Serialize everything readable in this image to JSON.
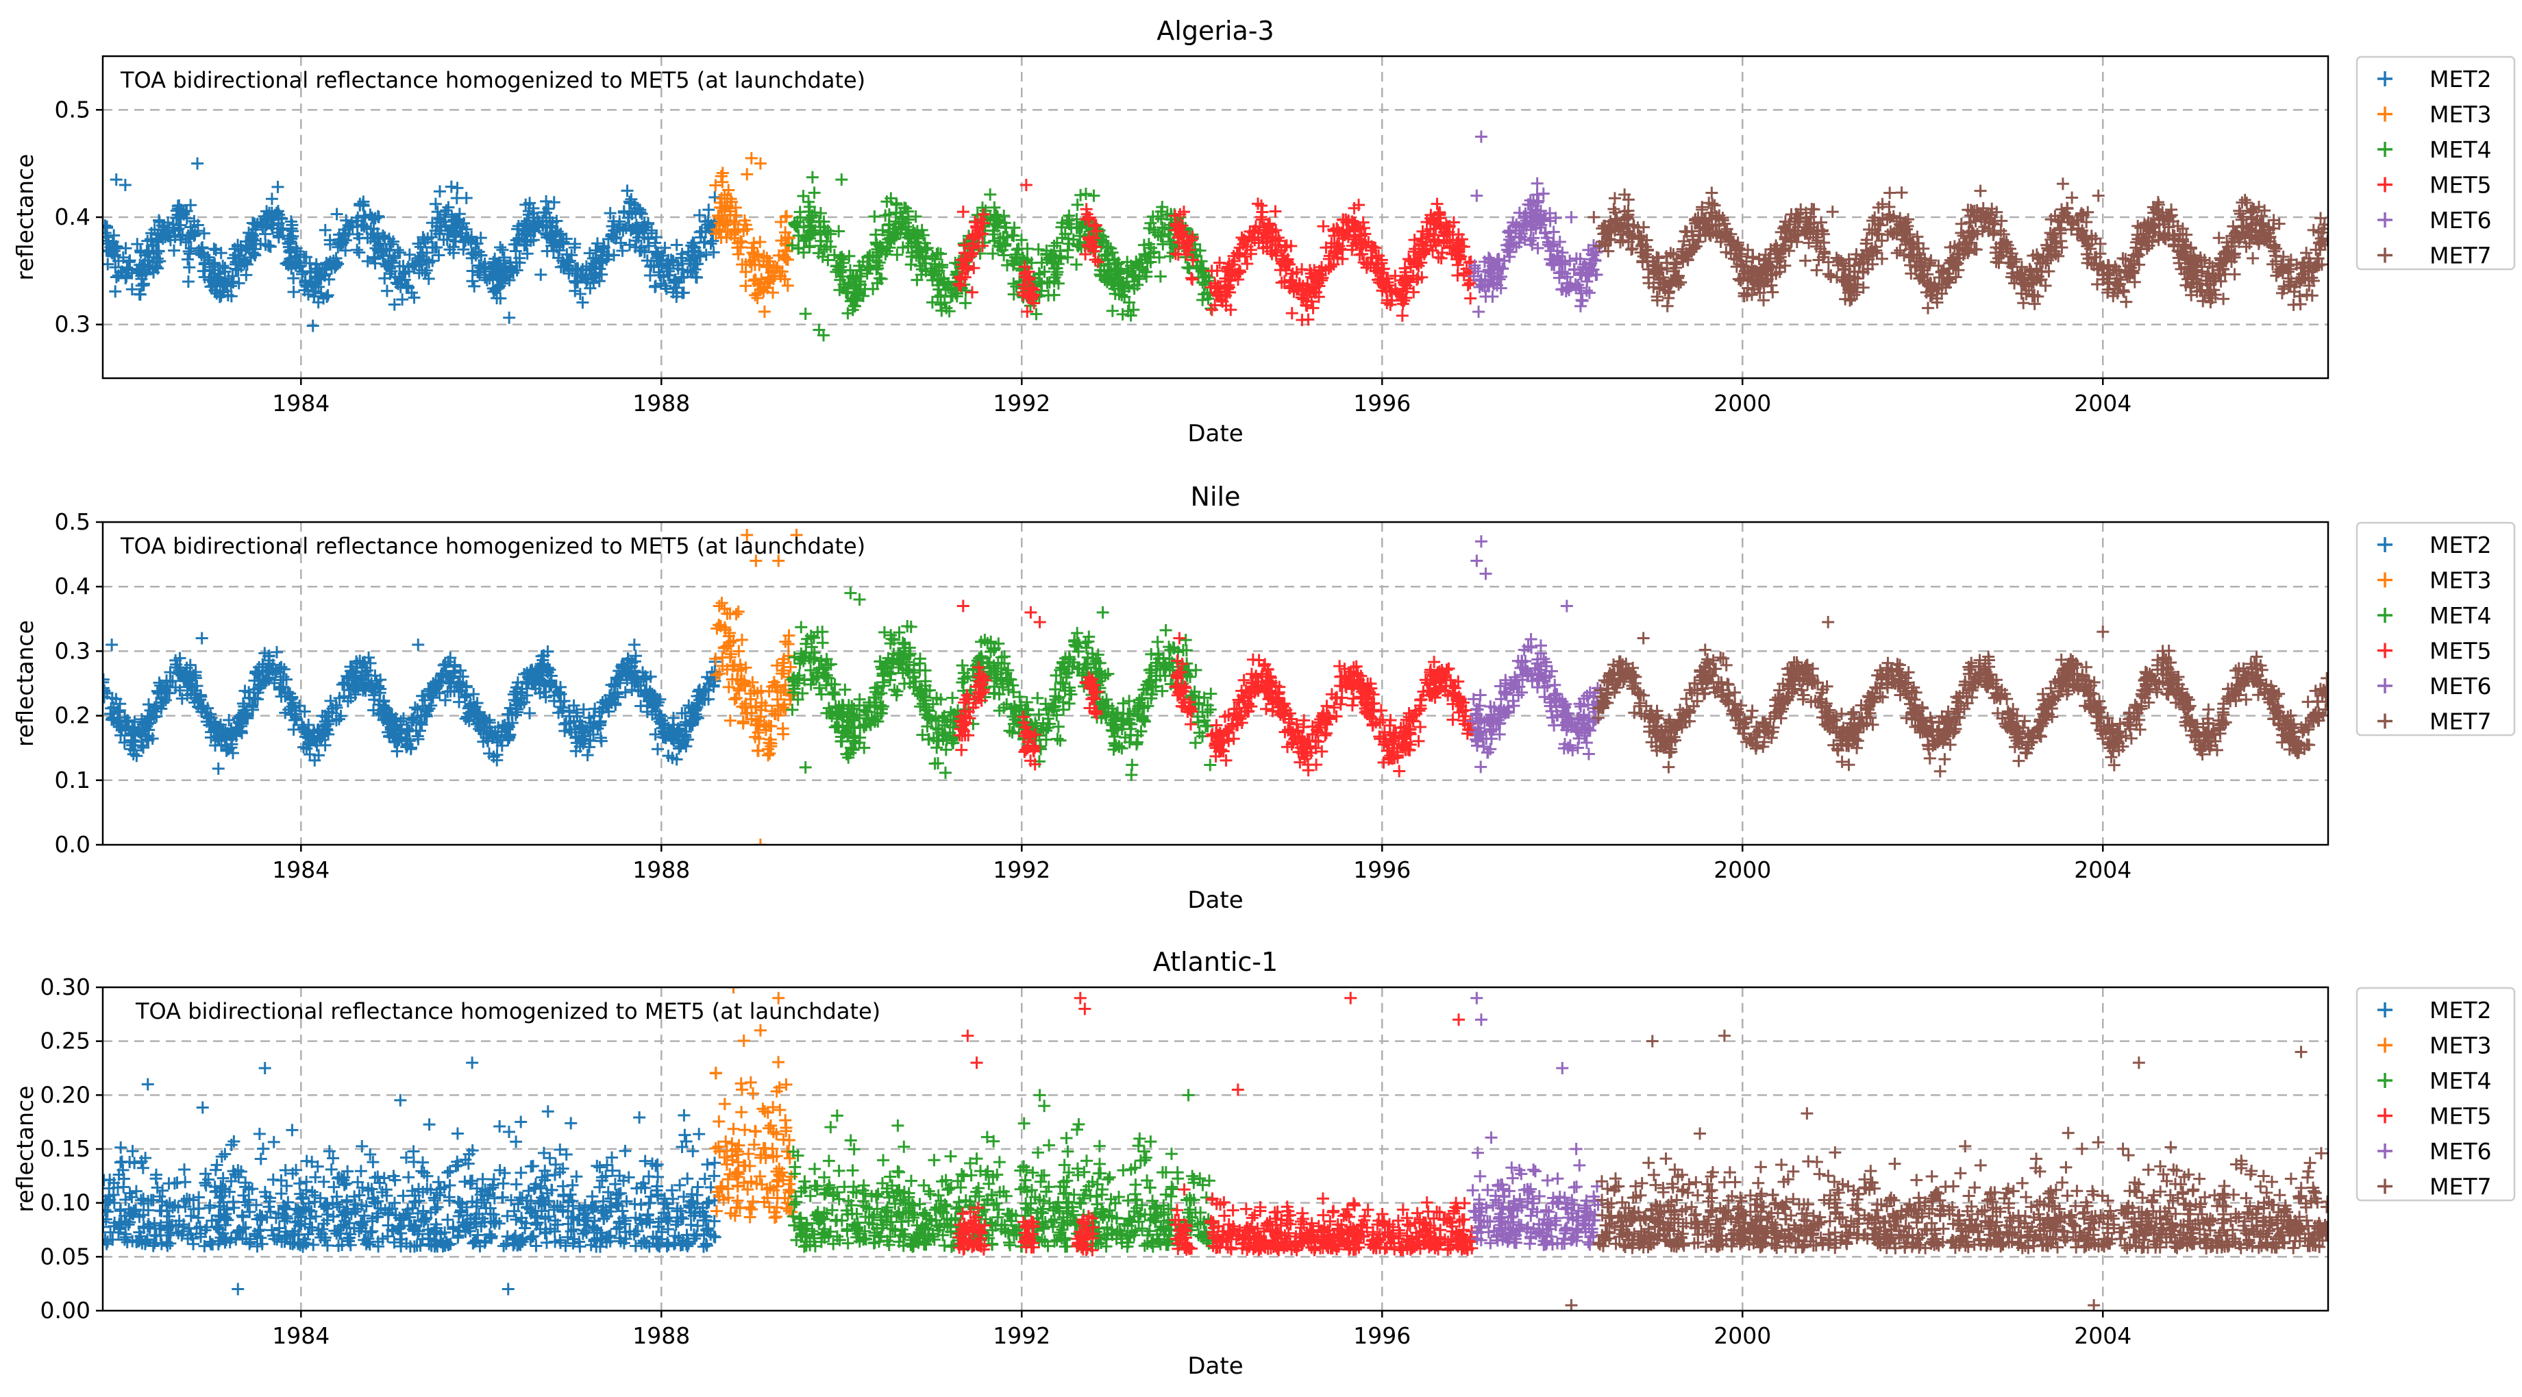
{
  "chart_data": [
    {
      "type": "scatter",
      "title": "Algeria-3",
      "annotation": "TOA bidirectional reflectance homogenized to MET5 (at launchdate)",
      "xlabel": "Date",
      "ylabel": "reflectance",
      "xlim": [
        1981.8,
        2006.5
      ],
      "ylim": [
        0.25,
        0.55
      ],
      "xticks": [
        1984,
        1988,
        1992,
        1996,
        2000,
        2004
      ],
      "xtick_labels": [
        "1984",
        "1988",
        "1992",
        "1996",
        "2000",
        "2004"
      ],
      "yticks": [
        0.3,
        0.4,
        0.5
      ],
      "ytick_labels": [
        "0.3",
        "0.4",
        "0.5"
      ],
      "grid": true,
      "legend_position": "outside-right",
      "marker": "+",
      "series": [
        {
          "name": "MET2",
          "color": "#1f77b4",
          "start": 1981.8,
          "end": 1988.6,
          "base": 0.37,
          "amp": 0.025,
          "noise": 0.012,
          "outliers": [
            [
              1981.95,
              0.435
            ],
            [
              1982.05,
              0.43
            ],
            [
              1982.85,
              0.45
            ],
            [
              1982.75,
              0.34
            ]
          ]
        },
        {
          "name": "MET3",
          "color": "#ff7f0e",
          "start": 1988.6,
          "end": 1989.45,
          "base": 0.375,
          "amp": 0.03,
          "noise": 0.015,
          "outliers": [
            [
              1989.0,
              0.455
            ],
            [
              1989.1,
              0.45
            ],
            [
              1988.95,
              0.44
            ]
          ]
        },
        {
          "name": "MET4",
          "color": "#2ca02c",
          "start": 1989.45,
          "end": 1994.1,
          "base": 0.365,
          "amp": 0.028,
          "noise": 0.013,
          "outliers": [
            [
              1989.75,
              0.295
            ],
            [
              1989.8,
              0.29
            ],
            [
              1989.6,
              0.31
            ],
            [
              1990.0,
              0.435
            ],
            [
              1992.8,
              0.42
            ]
          ]
        },
        {
          "name": "MET5",
          "color": "#ff2a2a",
          "start": 1994.1,
          "end": 1997.0,
          "base": 0.36,
          "amp": 0.03,
          "noise": 0.011,
          "outliers": [
            [
              1991.35,
              0.405
            ],
            [
              1991.45,
              0.33
            ],
            [
              1992.05,
              0.43
            ],
            [
              1993.8,
              0.405
            ]
          ],
          "extra_segments": [
            [
              1991.3,
              1991.6
            ],
            [
              1992.0,
              1992.15
            ],
            [
              1992.7,
              1992.85
            ],
            [
              1993.7,
              1993.9
            ]
          ]
        },
        {
          "name": "MET6",
          "color": "#9467bd",
          "start": 1997.0,
          "end": 1998.4,
          "base": 0.37,
          "amp": 0.03,
          "noise": 0.012,
          "outliers": [
            [
              1997.1,
              0.475
            ],
            [
              1997.05,
              0.42
            ],
            [
              1998.1,
              0.4
            ]
          ]
        },
        {
          "name": "MET7",
          "color": "#8c564b",
          "start": 1998.4,
          "end": 2006.5,
          "base": 0.368,
          "amp": 0.028,
          "noise": 0.011,
          "outliers": [
            [
              1998.35,
              0.4
            ],
            [
              2003.95,
              0.42
            ],
            [
              2001.0,
              0.405
            ]
          ]
        }
      ]
    },
    {
      "type": "scatter",
      "title": "Nile",
      "annotation": "TOA bidirectional reflectance homogenized to MET5 (at launchdate)",
      "xlabel": "Date",
      "ylabel": "reflectance",
      "xlim": [
        1981.8,
        2006.5
      ],
      "ylim": [
        0.0,
        0.5
      ],
      "xticks": [
        1984,
        1988,
        1992,
        1996,
        2000,
        2004
      ],
      "xtick_labels": [
        "1984",
        "1988",
        "1992",
        "1996",
        "2000",
        "2004"
      ],
      "yticks": [
        0.0,
        0.1,
        0.2,
        0.3,
        0.4,
        0.5
      ],
      "ytick_labels": [
        "0.0",
        "0.1",
        "0.2",
        "0.3",
        "0.4",
        "0.5"
      ],
      "grid": true,
      "legend_position": "outside-right",
      "marker": "+",
      "series": [
        {
          "name": "MET2",
          "color": "#1f77b4",
          "start": 1981.8,
          "end": 1988.6,
          "base": 0.215,
          "amp": 0.05,
          "noise": 0.015,
          "outliers": [
            [
              1981.9,
              0.31
            ],
            [
              1982.9,
              0.32
            ],
            [
              1985.3,
              0.31
            ],
            [
              1987.7,
              0.31
            ]
          ]
        },
        {
          "name": "MET3",
          "color": "#ff7f0e",
          "start": 1988.6,
          "end": 1989.45,
          "base": 0.25,
          "amp": 0.06,
          "noise": 0.035,
          "outliers": [
            [
              1988.95,
              0.48
            ],
            [
              1989.5,
              0.48
            ],
            [
              1989.05,
              0.44
            ],
            [
              1989.3,
              0.44
            ],
            [
              1989.1,
              0.0
            ]
          ]
        },
        {
          "name": "MET4",
          "color": "#2ca02c",
          "start": 1989.45,
          "end": 1994.1,
          "base": 0.23,
          "amp": 0.055,
          "noise": 0.025,
          "outliers": [
            [
              1990.1,
              0.39
            ],
            [
              1990.2,
              0.38
            ],
            [
              1989.6,
              0.12
            ],
            [
              1992.9,
              0.36
            ]
          ]
        },
        {
          "name": "MET5",
          "color": "#ff2a2a",
          "start": 1994.1,
          "end": 1997.0,
          "base": 0.205,
          "amp": 0.05,
          "noise": 0.015,
          "outliers": [
            [
              1991.35,
              0.37
            ],
            [
              1992.1,
              0.36
            ],
            [
              1992.2,
              0.345
            ],
            [
              1993.75,
              0.32
            ]
          ],
          "extra_segments": [
            [
              1991.3,
              1991.6
            ],
            [
              1992.0,
              1992.15
            ],
            [
              1992.7,
              1992.85
            ],
            [
              1993.7,
              1993.9
            ]
          ]
        },
        {
          "name": "MET6",
          "color": "#9467bd",
          "start": 1997.0,
          "end": 1998.4,
          "base": 0.23,
          "amp": 0.05,
          "noise": 0.02,
          "outliers": [
            [
              1997.1,
              0.47
            ],
            [
              1997.05,
              0.44
            ],
            [
              1997.15,
              0.42
            ],
            [
              1998.05,
              0.37
            ]
          ]
        },
        {
          "name": "MET7",
          "color": "#8c564b",
          "start": 1998.4,
          "end": 2006.5,
          "base": 0.215,
          "amp": 0.05,
          "noise": 0.015,
          "outliers": [
            [
              2000.95,
              0.345
            ],
            [
              2004.0,
              0.33
            ],
            [
              1998.9,
              0.32
            ]
          ]
        }
      ]
    },
    {
      "type": "scatter",
      "title": "Atlantic-1",
      "annotation": "TOA bidirectional reflectance homogenized to MET5 (at launchdate)",
      "xlabel": "Date",
      "ylabel": "reflectance",
      "xlim": [
        1981.8,
        2006.5
      ],
      "ylim": [
        0.0,
        0.3
      ],
      "xticks": [
        1984,
        1988,
        1992,
        1996,
        2000,
        2004
      ],
      "xtick_labels": [
        "1984",
        "1988",
        "1992",
        "1996",
        "2000",
        "2004"
      ],
      "yticks": [
        0.0,
        0.05,
        0.1,
        0.15,
        0.2,
        0.25,
        0.3
      ],
      "ytick_labels": [
        "0.00",
        "0.05",
        "0.10",
        "0.15",
        "0.20",
        "0.25",
        "0.30"
      ],
      "grid": true,
      "legend_position": "outside-right",
      "marker": "+",
      "series": [
        {
          "name": "MET2",
          "color": "#1f77b4",
          "start": 1981.8,
          "end": 1988.6,
          "base": 0.075,
          "amp": 0.0,
          "noise": 0.045,
          "outliers": [
            [
              1983.6,
              0.225
            ],
            [
              1985.9,
              0.23
            ],
            [
              1983.3,
              0.02
            ],
            [
              1986.3,
              0.02
            ],
            [
              1982.3,
              0.21
            ]
          ]
        },
        {
          "name": "MET3",
          "color": "#ff7f0e",
          "start": 1988.6,
          "end": 1989.45,
          "base": 0.11,
          "amp": 0.0,
          "noise": 0.07,
          "outliers": [
            [
              1988.8,
              0.3
            ],
            [
              1989.3,
              0.29
            ],
            [
              1989.1,
              0.26
            ]
          ]
        },
        {
          "name": "MET4",
          "color": "#2ca02c",
          "start": 1989.45,
          "end": 1994.1,
          "base": 0.075,
          "amp": 0.0,
          "noise": 0.045,
          "outliers": [
            [
              1992.2,
              0.2
            ],
            [
              1992.25,
              0.19
            ],
            [
              1993.85,
              0.2
            ]
          ]
        },
        {
          "name": "MET5",
          "color": "#ff2a2a",
          "start": 1994.1,
          "end": 1997.0,
          "base": 0.063,
          "amp": 0.0,
          "noise": 0.02,
          "outliers": [
            [
              1992.65,
              0.29
            ],
            [
              1992.7,
              0.28
            ],
            [
              1995.65,
              0.29
            ],
            [
              1991.4,
              0.255
            ],
            [
              1991.5,
              0.23
            ],
            [
              1996.85,
              0.27
            ],
            [
              1994.4,
              0.205
            ]
          ],
          "extra_segments": [
            [
              1991.3,
              1991.6
            ],
            [
              1992.0,
              1992.15
            ],
            [
              1992.6,
              1992.8
            ],
            [
              1993.7,
              1993.9
            ]
          ]
        },
        {
          "name": "MET6",
          "color": "#9467bd",
          "start": 1997.0,
          "end": 1998.4,
          "base": 0.075,
          "amp": 0.0,
          "noise": 0.04,
          "outliers": [
            [
              1997.05,
              0.29
            ],
            [
              1997.1,
              0.27
            ],
            [
              1998.0,
              0.225
            ]
          ]
        },
        {
          "name": "MET7",
          "color": "#8c564b",
          "start": 1998.4,
          "end": 2006.5,
          "base": 0.07,
          "amp": 0.0,
          "noise": 0.035,
          "outliers": [
            [
              1998.1,
              0.005
            ],
            [
              1999.0,
              0.25
            ],
            [
              1999.8,
              0.255
            ],
            [
              2004.4,
              0.23
            ],
            [
              2006.2,
              0.24
            ],
            [
              2003.9,
              0.005
            ]
          ]
        }
      ]
    }
  ]
}
